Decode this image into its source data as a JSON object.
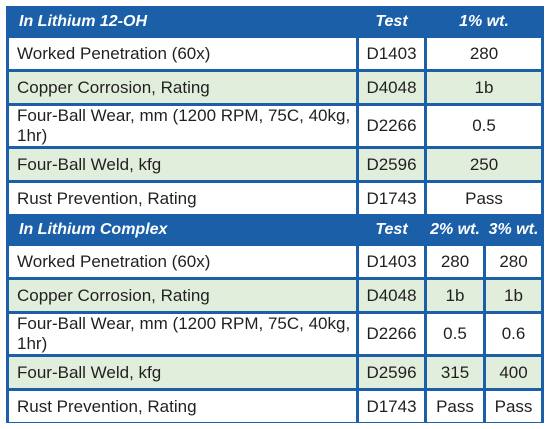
{
  "section1": {
    "title": "In Lithium 12-OH",
    "test_header": "Test",
    "value_header": "1% wt.",
    "rows": [
      {
        "name": "Worked Penetration (60x)",
        "test": "D1403",
        "v": "280"
      },
      {
        "name": "Copper Corrosion, Rating",
        "test": "D4048",
        "v": "1b"
      },
      {
        "name": "Four-Ball Wear, mm (1200 RPM, 75C, 40kg, 1hr)",
        "test": "D2266",
        "v": "0.5"
      },
      {
        "name": "Four-Ball Weld, kfg",
        "test": "D2596",
        "v": "250"
      },
      {
        "name": "Rust Prevention, Rating",
        "test": "D1743",
        "v": "Pass"
      }
    ]
  },
  "section2": {
    "title": "In Lithium Complex",
    "test_header": "Test",
    "value_headers": [
      "2% wt.",
      "3% wt."
    ],
    "rows": [
      {
        "name": "Worked Penetration (60x)",
        "test": "D1403",
        "v2": "280",
        "v3": "280"
      },
      {
        "name": "Copper Corrosion, Rating",
        "test": "D4048",
        "v2": "1b",
        "v3": "1b"
      },
      {
        "name": "Four-Ball Wear, mm (1200 RPM, 75C, 40kg, 1hr)",
        "test": "D2266",
        "v2": "0.5",
        "v3": "0.6"
      },
      {
        "name": "Four-Ball Weld, kfg",
        "test": "D2596",
        "v2": "315",
        "v3": "400"
      },
      {
        "name": "Rust Prevention, Rating",
        "test": "D1743",
        "v2": "Pass",
        "v3": "Pass"
      }
    ]
  },
  "colors": {
    "header_blue": "#1a5fa8",
    "row_green": "#e1eedc",
    "row_white": "#ffffff"
  }
}
